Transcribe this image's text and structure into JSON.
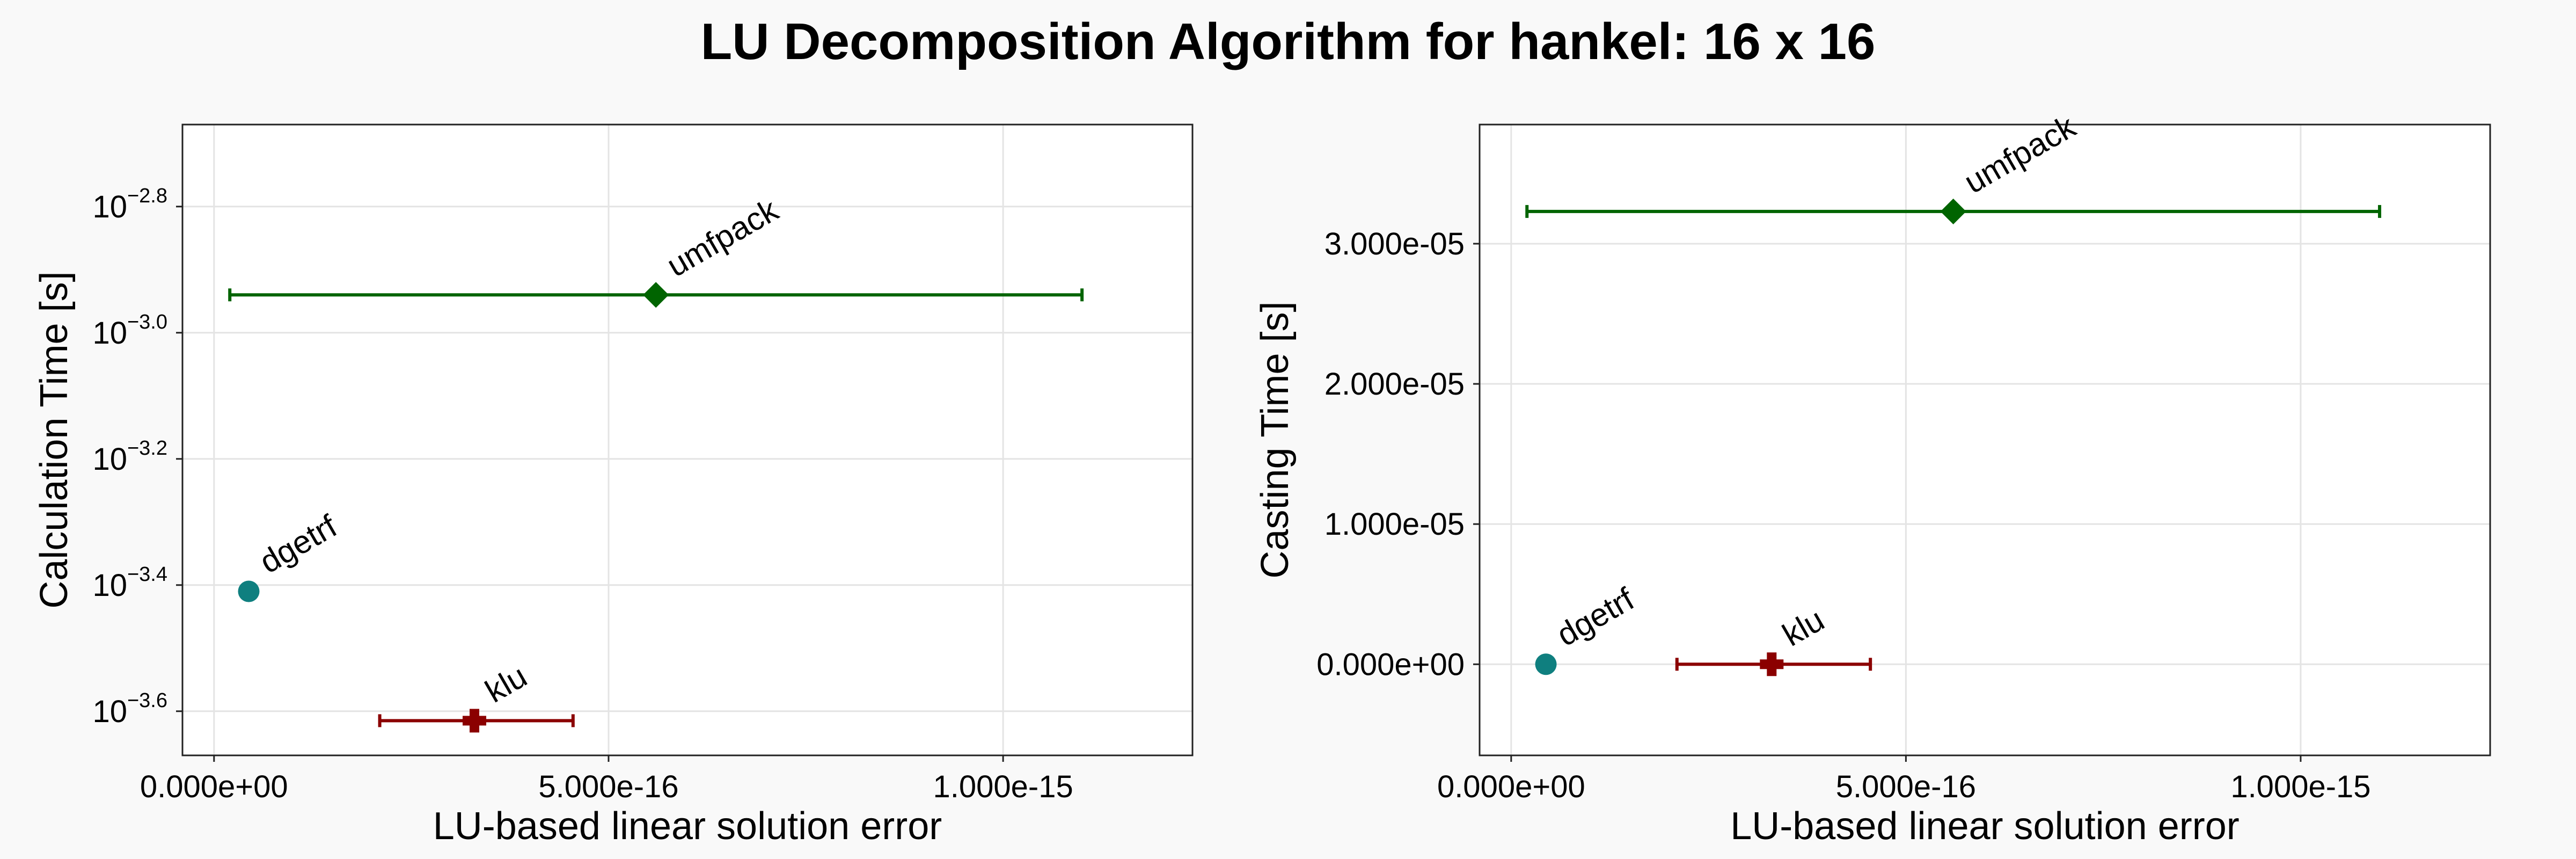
{
  "figure": {
    "title": "LU Decomposition Algorithm for hankel: 16 x 16"
  },
  "chart_data": [
    {
      "type": "scatter",
      "xlabel": "LU-based linear solution error",
      "ylabel": "Calculation Time [s]",
      "yscale": "log10",
      "xlim": [
        -4e-17,
        1.24e-15
      ],
      "ylim": [
        -3.67,
        -2.67
      ],
      "xticks": [
        {
          "value": 0,
          "label": "0.000e+00"
        },
        {
          "value": 5e-16,
          "label": "5.000e-16"
        },
        {
          "value": 1e-15,
          "label": "1.000e-15"
        }
      ],
      "yticks": [
        {
          "value": -3.6,
          "base": "10",
          "exp": "−3.6"
        },
        {
          "value": -3.4,
          "base": "10",
          "exp": "−3.4"
        },
        {
          "value": -3.2,
          "base": "10",
          "exp": "−3.2"
        },
        {
          "value": -3.0,
          "base": "10",
          "exp": "−3.0"
        },
        {
          "value": -2.8,
          "base": "10",
          "exp": "−2.8"
        }
      ],
      "grid": true,
      "points": [
        {
          "name": "dgetrf",
          "x": 4.4e-17,
          "y": -3.41,
          "x_err": null,
          "marker": "circle",
          "color": "#0f7f7f"
        },
        {
          "name": "klu",
          "x": 3.3e-16,
          "y": -3.615,
          "x_err": [
            2.1e-16,
            4.55e-16
          ],
          "marker": "cross",
          "color": "#8b0000"
        },
        {
          "name": "umfpack",
          "x": 5.6e-16,
          "y": -2.94,
          "x_err": [
            2e-17,
            1.1e-15
          ],
          "marker": "diamond",
          "color": "#006400"
        }
      ]
    },
    {
      "type": "scatter",
      "xlabel": "LU-based linear solution error",
      "ylabel": "Casting Time [s]",
      "yscale": "linear",
      "xlim": [
        -4e-17,
        1.24e-15
      ],
      "ylim": [
        -6.5e-06,
        3.85e-05
      ],
      "xticks": [
        {
          "value": 0,
          "label": "0.000e+00"
        },
        {
          "value": 5e-16,
          "label": "5.000e-16"
        },
        {
          "value": 1e-15,
          "label": "1.000e-15"
        }
      ],
      "yticks": [
        {
          "value": 0,
          "label": "0.000e+00"
        },
        {
          "value": 1e-05,
          "label": "1.000e-05"
        },
        {
          "value": 2e-05,
          "label": "2.000e-05"
        },
        {
          "value": 3e-05,
          "label": "3.000e-05"
        }
      ],
      "grid": true,
      "points": [
        {
          "name": "dgetrf",
          "x": 4.4e-17,
          "y": 0,
          "x_err": null,
          "marker": "circle",
          "color": "#0f7f7f"
        },
        {
          "name": "klu",
          "x": 3.3e-16,
          "y": 0,
          "x_err": [
            2.1e-16,
            4.55e-16
          ],
          "marker": "cross",
          "color": "#8b0000"
        },
        {
          "name": "umfpack",
          "x": 5.6e-16,
          "y": 3.23e-05,
          "x_err": [
            2e-17,
            1.1e-15
          ],
          "marker": "diamond",
          "color": "#006400"
        }
      ]
    }
  ]
}
